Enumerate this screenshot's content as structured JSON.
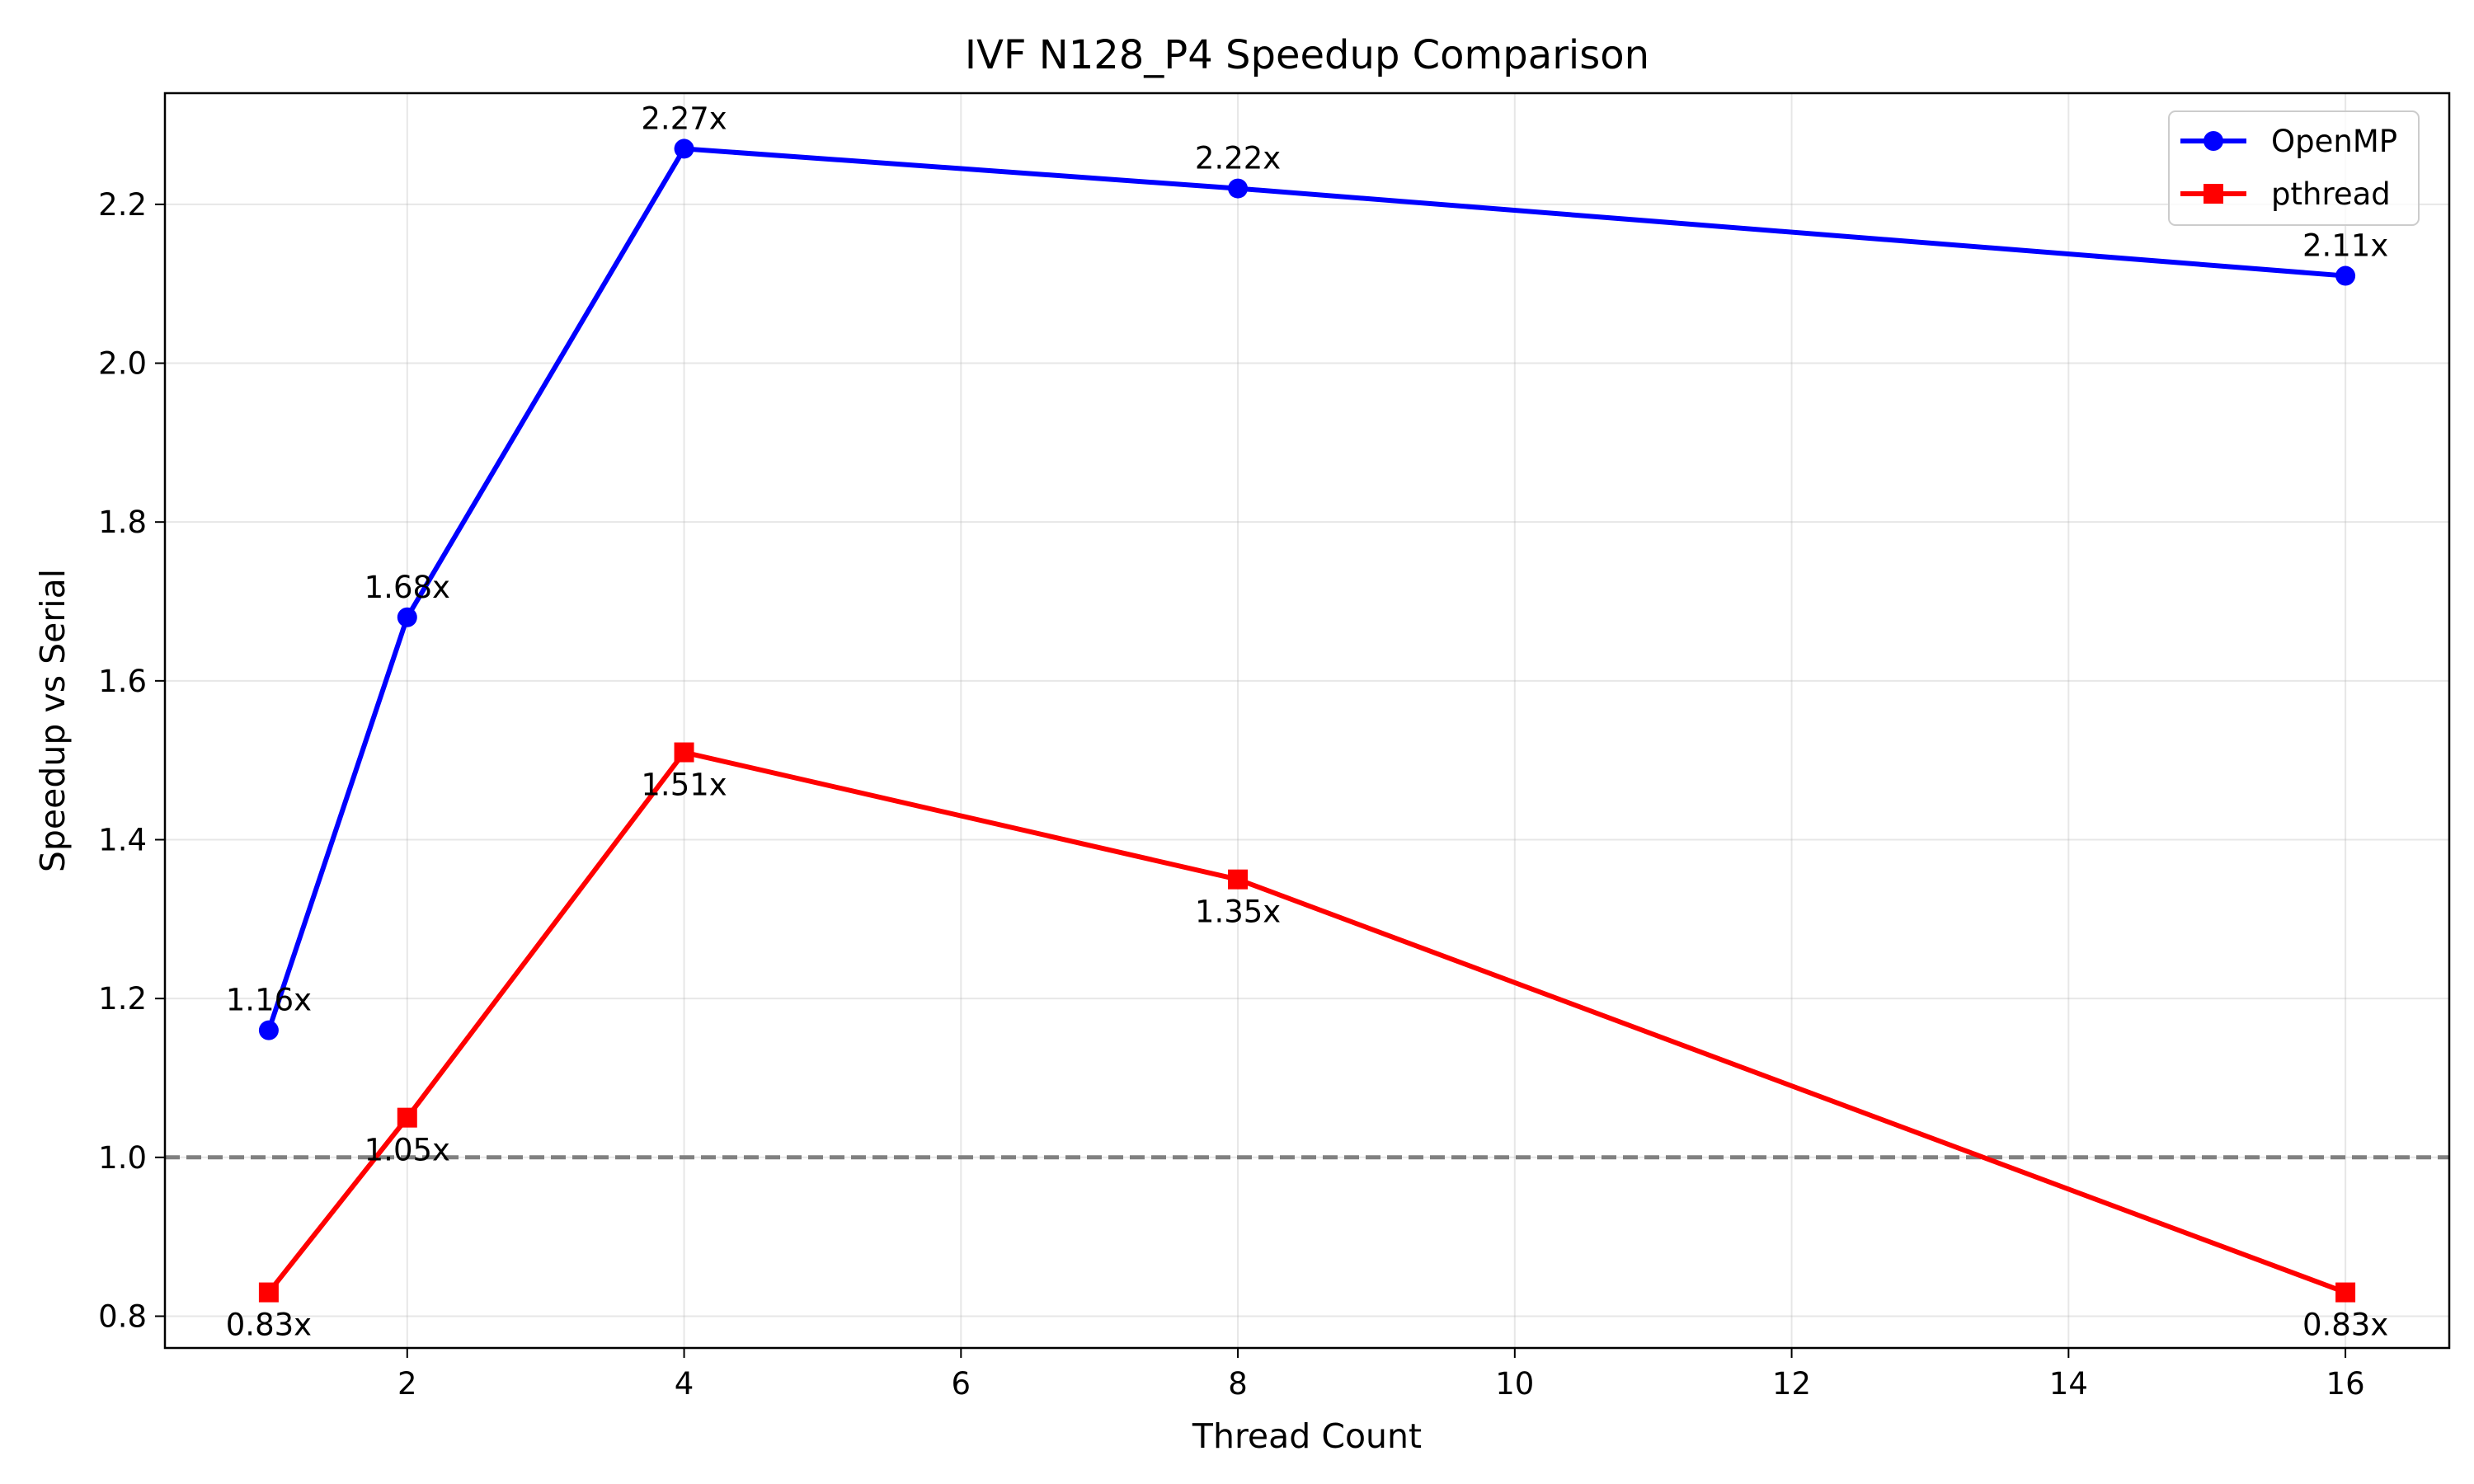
{
  "chart_data": {
    "type": "line",
    "title": "IVF N128_P4 Speedup Comparison",
    "xlabel": "Thread Count",
    "ylabel": "Speedup vs Serial",
    "xlim": [
      0.25,
      16.75
    ],
    "ylim": [
      0.76,
      2.34
    ],
    "xticks": [
      2,
      4,
      6,
      8,
      10,
      12,
      14,
      16
    ],
    "yticks": [
      0.8,
      1.0,
      1.2,
      1.4,
      1.6,
      1.8,
      2.0,
      2.2
    ],
    "grid": true,
    "legend_position": "top-right",
    "reference_line": {
      "y": 1.0,
      "style": "dashed",
      "color": "#808080"
    },
    "x": [
      1,
      2,
      4,
      8,
      16
    ],
    "series": [
      {
        "name": "OpenMP",
        "color": "#0000ff",
        "marker": "circle",
        "values": [
          1.16,
          1.68,
          2.27,
          2.22,
          2.11
        ],
        "labels": [
          "1.16x",
          "1.68x",
          "2.27x",
          "2.22x",
          "2.11x"
        ],
        "label_side": "above"
      },
      {
        "name": "pthread",
        "color": "#ff0000",
        "marker": "square",
        "values": [
          0.83,
          1.05,
          1.51,
          1.35,
          0.83
        ],
        "labels": [
          "0.83x",
          "1.05x",
          "1.51x",
          "1.35x",
          "0.83x"
        ],
        "label_side": "below"
      }
    ]
  }
}
